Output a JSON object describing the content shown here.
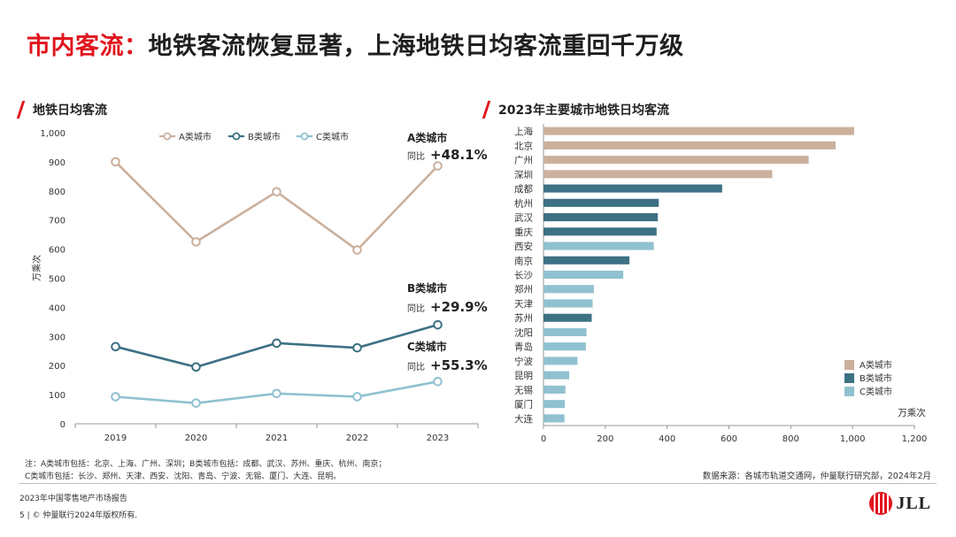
{
  "page": {
    "title_highlight": "市内客流：",
    "title_rest": "地铁客流恢复显著，上海地铁日均客流重回千万级",
    "left_heading": "地铁日均客流",
    "right_heading": "2023年主要城市地铁日均客流",
    "note_line1": "注：A类城市包括：北京、上海、广州、深圳；B类城市包括：成都、武汉、苏州、重庆、杭州、南京；",
    "note_line2": "C类城市包括：长沙、郑州、天津、西安、沈阳、青岛、宁波、无锡、厦门、大连、昆明。",
    "source": "数据来源：各城市轨道交通网，仲量联行研究部，2024年2月",
    "footer_report": "2023年中国零售地产市场报告",
    "footer_copyright": "5 | © 仲量联行2024年版权所有.",
    "logo_text": "JLL"
  },
  "colors": {
    "A": "#cbb09c",
    "B": "#3d7184",
    "C": "#90c1d0",
    "accent": "#e0141d"
  },
  "chart_data": [
    {
      "type": "line",
      "title": "地铁日均客流",
      "ylabel": "万乘次",
      "xlabel": "",
      "ylim": [
        0,
        1000
      ],
      "yticks": [
        "0",
        "100",
        "200",
        "300",
        "400",
        "500",
        "600",
        "700",
        "800",
        "900",
        "1,000"
      ],
      "x": [
        "2019",
        "2020",
        "2021",
        "2022",
        "2023"
      ],
      "legend_position": "top",
      "series": [
        {
          "name": "A类城市",
          "key": "A",
          "values": [
            900,
            625,
            797,
            597,
            886
          ]
        },
        {
          "name": "B类城市",
          "key": "B",
          "values": [
            265,
            195,
            277,
            261,
            340
          ]
        },
        {
          "name": "C类城市",
          "key": "C",
          "values": [
            93,
            71,
            104,
            93,
            145
          ]
        }
      ],
      "annotations": [
        {
          "series": "A",
          "label": "A类城市",
          "prefix": "同比",
          "value": "+48.1%"
        },
        {
          "series": "B",
          "label": "B类城市",
          "prefix": "同比",
          "value": "+29.9%"
        },
        {
          "series": "C",
          "label": "C类城市",
          "prefix": "同比",
          "value": "+55.3%"
        }
      ]
    },
    {
      "type": "bar",
      "orientation": "horizontal",
      "title": "2023年主要城市地铁日均客流",
      "xlabel": "万乘次",
      "xlim": [
        0,
        1200
      ],
      "xticks": [
        "0",
        "200",
        "400",
        "600",
        "800",
        "1,000",
        "1,200"
      ],
      "legend_position": "bottom-right",
      "legend": [
        {
          "key": "A",
          "label": "A类城市"
        },
        {
          "key": "B",
          "label": "B类城市"
        },
        {
          "key": "C",
          "label": "C类城市"
        }
      ],
      "categories": [
        "上海",
        "北京",
        "广州",
        "深圳",
        "成都",
        "杭州",
        "武汉",
        "重庆",
        "西安",
        "南京",
        "长沙",
        "郑州",
        "天津",
        "苏州",
        "沈阳",
        "青岛",
        "宁波",
        "昆明",
        "无锡",
        "厦门",
        "大连"
      ],
      "values": [
        1005,
        945,
        858,
        740,
        578,
        373,
        370,
        366,
        357,
        278,
        258,
        163,
        159,
        156,
        139,
        137,
        110,
        83,
        71,
        69,
        68
      ],
      "class": [
        "A",
        "A",
        "A",
        "A",
        "B",
        "B",
        "B",
        "B",
        "C",
        "B",
        "C",
        "C",
        "C",
        "B",
        "C",
        "C",
        "C",
        "C",
        "C",
        "C",
        "C"
      ]
    }
  ]
}
